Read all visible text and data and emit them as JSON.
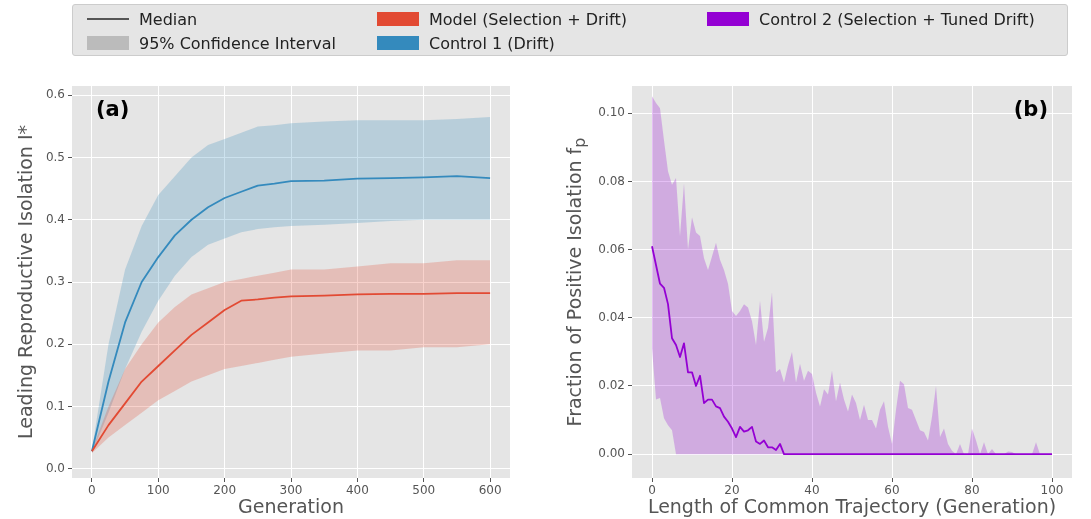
{
  "chart_data": [
    {
      "type": "line",
      "xlabel": "Generation",
      "ylabel": "Leading Reproductive Isolation I*",
      "legend": "top",
      "grid": true,
      "annotations": [
        "(a)",
        "Median",
        "95% Confidence Interval"
      ],
      "x": [
        0,
        25,
        50,
        75,
        100,
        125,
        150,
        175,
        200,
        225,
        250,
        275,
        300,
        350,
        400,
        450,
        500,
        550,
        600
      ],
      "series": [
        {
          "name": "Model (Selection + Drift)",
          "color": "#e24a33",
          "values": [
            0.028,
            0.07,
            0.105,
            0.14,
            0.165,
            0.19,
            0.215,
            0.235,
            0.255,
            0.27,
            0.272,
            0.275,
            0.277,
            0.278,
            0.28,
            0.281,
            0.281,
            0.282,
            0.282
          ],
          "lower": [
            0.025,
            0.05,
            0.07,
            0.09,
            0.11,
            0.125,
            0.14,
            0.15,
            0.16,
            0.165,
            0.17,
            0.175,
            0.18,
            0.185,
            0.19,
            0.19,
            0.195,
            0.195,
            0.2
          ],
          "upper": [
            0.03,
            0.1,
            0.16,
            0.2,
            0.235,
            0.26,
            0.28,
            0.29,
            0.3,
            0.305,
            0.31,
            0.315,
            0.32,
            0.32,
            0.325,
            0.33,
            0.33,
            0.335,
            0.335
          ]
        },
        {
          "name": "Control 1 (Drift)",
          "color": "#348abd",
          "values": [
            0.028,
            0.14,
            0.235,
            0.3,
            0.34,
            0.375,
            0.4,
            0.42,
            0.435,
            0.445,
            0.455,
            0.458,
            0.462,
            0.463,
            0.466,
            0.467,
            0.468,
            0.47,
            0.467
          ],
          "lower": [
            0.025,
            0.09,
            0.16,
            0.22,
            0.27,
            0.31,
            0.34,
            0.36,
            0.37,
            0.38,
            0.385,
            0.388,
            0.39,
            0.392,
            0.395,
            0.398,
            0.4,
            0.4,
            0.4
          ],
          "upper": [
            0.03,
            0.2,
            0.32,
            0.39,
            0.44,
            0.47,
            0.5,
            0.52,
            0.53,
            0.54,
            0.55,
            0.552,
            0.555,
            0.558,
            0.56,
            0.56,
            0.56,
            0.562,
            0.565
          ]
        }
      ],
      "xlim": [
        -30,
        630
      ],
      "xticks": [
        0,
        100,
        200,
        300,
        400,
        500,
        600
      ],
      "ylim": [
        -0.015,
        0.615
      ],
      "yticks": [
        {
          "value": 0,
          "label": "0.0"
        },
        {
          "value": 0.1,
          "label": "0.1"
        },
        {
          "value": 0.2,
          "label": "0.2"
        },
        {
          "value": 0.3,
          "label": "0.3"
        },
        {
          "value": 0.4,
          "label": "0.4"
        },
        {
          "value": 0.5,
          "label": "0.5"
        },
        {
          "value": 0.6,
          "label": "0.6"
        }
      ]
    },
    {
      "type": "line",
      "xlabel": "Length of Common Trajectory (Generation)",
      "ylabel": "Fraction of Positive Isolation f$_{p}$",
      "legend": "top",
      "grid": true,
      "annotations": [
        "(b)"
      ],
      "x": [
        0,
        1,
        2,
        3,
        4,
        5,
        6,
        7,
        8,
        9,
        10,
        11,
        12,
        13,
        14,
        15,
        16,
        17,
        18,
        19,
        20,
        21,
        22,
        23,
        24,
        25,
        26,
        27,
        28,
        29,
        30,
        31,
        32,
        33,
        34,
        35,
        36,
        37,
        38,
        39,
        40,
        41,
        42,
        43,
        44,
        45,
        46,
        47,
        48,
        49,
        50,
        51,
        52,
        53,
        54,
        55,
        56,
        57,
        58,
        59,
        60,
        61,
        62,
        63,
        64,
        65,
        66,
        67,
        68,
        69,
        70,
        71,
        72,
        73,
        74,
        75,
        76,
        77,
        78,
        79,
        80,
        81,
        82,
        83,
        84,
        85,
        86,
        87,
        88,
        89,
        90,
        91,
        92,
        93,
        94,
        95,
        96,
        97,
        98,
        99,
        100
      ],
      "series": [
        {
          "name": "Control 2 (Selection + Tuned Drift)",
          "color": "#9400d3",
          "values": [
            0.061,
            0.0555,
            0.05,
            0.0488,
            0.044,
            0.034,
            0.032,
            0.0285,
            0.0325,
            0.024,
            0.024,
            0.02,
            0.023,
            0.015,
            0.016,
            0.016,
            0.014,
            0.0135,
            0.011,
            0.0095,
            0.0075,
            0.005,
            0.008,
            0.0066,
            0.007,
            0.008,
            0.0037,
            0.003,
            0.004,
            0.002,
            0.002,
            0.0012,
            0.003,
            0,
            0,
            0,
            0,
            0,
            0,
            0,
            0,
            0,
            0,
            0,
            0,
            0,
            0,
            0,
            0,
            0,
            0,
            0,
            0,
            0,
            0,
            0,
            0,
            0,
            0,
            0,
            0,
            0,
            0,
            0,
            0,
            0,
            0,
            0,
            0,
            0,
            0,
            0,
            0,
            0,
            0,
            0,
            0,
            0,
            0,
            0,
            0,
            0,
            0,
            0,
            0,
            0,
            0,
            0,
            0,
            0,
            0,
            0,
            0,
            0,
            0,
            0,
            0,
            0,
            0,
            0,
            0
          ],
          "lower": [
            0.031,
            0.016,
            0.0165,
            0.0105,
            0.0085,
            0.007,
            0,
            0,
            0,
            0,
            0,
            0,
            0,
            0,
            0,
            0,
            0,
            0,
            0,
            0,
            0,
            0,
            0,
            0,
            0,
            0,
            0,
            0,
            0,
            0,
            0,
            0,
            0,
            0,
            0,
            0,
            0,
            0,
            0,
            0,
            0,
            0,
            0,
            0,
            0,
            0,
            0,
            0,
            0,
            0,
            0,
            0,
            0,
            0,
            0,
            0,
            0,
            0,
            0,
            0,
            0,
            0,
            0,
            0,
            0,
            0,
            0,
            0,
            0,
            0,
            0,
            0,
            0,
            0,
            0,
            0,
            0,
            0,
            0,
            0,
            0,
            0,
            0,
            0,
            0,
            0,
            0,
            0,
            0,
            0,
            0,
            0,
            0,
            0,
            0,
            0,
            0,
            0,
            0,
            0,
            0
          ],
          "upper": [
            0.105,
            0.103,
            0.1015,
            0.092,
            0.083,
            0.079,
            0.081,
            0.064,
            0.0795,
            0.06,
            0.0695,
            0.065,
            0.064,
            0.0575,
            0.054,
            0.058,
            0.062,
            0.057,
            0.054,
            0.05,
            0.042,
            0.0405,
            0.042,
            0.044,
            0.043,
            0.039,
            0.032,
            0.045,
            0.033,
            0.037,
            0.0475,
            0.024,
            0.025,
            0.021,
            0.026,
            0.03,
            0.021,
            0.0265,
            0.0215,
            0.0245,
            0.0235,
            0.018,
            0.014,
            0.019,
            0.0175,
            0.0245,
            0.0155,
            0.021,
            0.016,
            0.0125,
            0.0175,
            0.015,
            0.01,
            0.0145,
            0.01,
            0.01,
            0.0075,
            0.013,
            0.0155,
            0.008,
            0.003,
            0.013,
            0.0215,
            0.0205,
            0.0135,
            0.013,
            0.01,
            0.007,
            0.0065,
            0.004,
            0.011,
            0.02,
            0.005,
            0.0075,
            0.003,
            0.001,
            0,
            0.003,
            0,
            0,
            0.0075,
            0.004,
            0,
            0.0035,
            0,
            0.0015,
            0,
            0,
            0,
            0.0008,
            0.0006,
            0,
            0,
            0,
            0,
            0,
            0.0035,
            0,
            0,
            0,
            0
          ]
        }
      ],
      "xlim": [
        -5,
        105
      ],
      "xticks": [
        0,
        20,
        40,
        60,
        80,
        100
      ],
      "ylim": [
        -0.007,
        0.108
      ],
      "yticks": [
        {
          "value": 0,
          "label": "0.00"
        },
        {
          "value": 0.02,
          "label": "0.02"
        },
        {
          "value": 0.04,
          "label": "0.04"
        },
        {
          "value": 0.06,
          "label": "0.06"
        },
        {
          "value": 0.08,
          "label": "0.08"
        },
        {
          "value": 0.1,
          "label": "0.10"
        }
      ]
    }
  ]
}
